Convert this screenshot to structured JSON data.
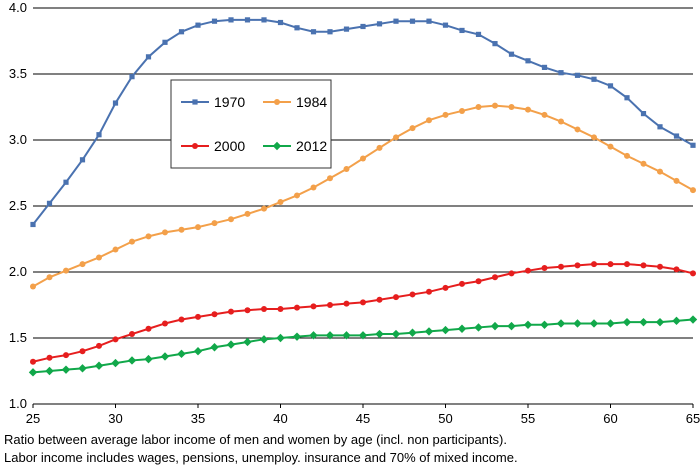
{
  "chart_data": {
    "type": "line",
    "xlim": [
      25,
      65
    ],
    "ylim": [
      1.0,
      4.0
    ],
    "x_ticks": [
      25,
      30,
      35,
      40,
      45,
      50,
      55,
      60,
      65
    ],
    "y_ticks": [
      "1.0",
      "1.5",
      "2.0",
      "2.5",
      "3.0",
      "3.5",
      "4.0"
    ],
    "grid": "horizontal",
    "legend_position": "upper-left-inside",
    "x": [
      25,
      26,
      27,
      28,
      29,
      30,
      31,
      32,
      33,
      34,
      35,
      36,
      37,
      38,
      39,
      40,
      41,
      42,
      43,
      44,
      45,
      46,
      47,
      48,
      49,
      50,
      51,
      52,
      53,
      54,
      55,
      56,
      57,
      58,
      59,
      60,
      61,
      62,
      63,
      64,
      65
    ],
    "series": [
      {
        "name": "1970",
        "color": "#4a72b0",
        "marker": "square",
        "values": [
          2.36,
          2.52,
          2.68,
          2.85,
          3.04,
          3.28,
          3.48,
          3.63,
          3.74,
          3.82,
          3.87,
          3.9,
          3.91,
          3.91,
          3.91,
          3.89,
          3.85,
          3.82,
          3.82,
          3.84,
          3.86,
          3.88,
          3.9,
          3.9,
          3.9,
          3.87,
          3.83,
          3.8,
          3.73,
          3.65,
          3.6,
          3.55,
          3.51,
          3.49,
          3.46,
          3.41,
          3.32,
          3.2,
          3.1,
          3.03,
          2.96
        ]
      },
      {
        "name": "1984",
        "color": "#f3a04a",
        "marker": "circle",
        "values": [
          1.89,
          1.96,
          2.01,
          2.06,
          2.11,
          2.17,
          2.23,
          2.27,
          2.3,
          2.32,
          2.34,
          2.37,
          2.4,
          2.44,
          2.48,
          2.53,
          2.58,
          2.64,
          2.71,
          2.78,
          2.86,
          2.94,
          3.02,
          3.09,
          3.15,
          3.19,
          3.22,
          3.25,
          3.26,
          3.25,
          3.23,
          3.19,
          3.14,
          3.08,
          3.02,
          2.95,
          2.88,
          2.82,
          2.76,
          2.69,
          2.62
        ]
      },
      {
        "name": "2000",
        "color": "#e61e1e",
        "marker": "circle",
        "values": [
          1.32,
          1.35,
          1.37,
          1.4,
          1.44,
          1.49,
          1.53,
          1.57,
          1.61,
          1.64,
          1.66,
          1.68,
          1.7,
          1.71,
          1.72,
          1.72,
          1.73,
          1.74,
          1.75,
          1.76,
          1.77,
          1.79,
          1.81,
          1.83,
          1.85,
          1.88,
          1.91,
          1.93,
          1.96,
          1.99,
          2.01,
          2.03,
          2.04,
          2.05,
          2.06,
          2.06,
          2.06,
          2.05,
          2.04,
          2.02,
          1.99
        ]
      },
      {
        "name": "2012",
        "color": "#11a84a",
        "marker": "diamond",
        "values": [
          1.24,
          1.25,
          1.26,
          1.27,
          1.29,
          1.31,
          1.33,
          1.34,
          1.36,
          1.38,
          1.4,
          1.43,
          1.45,
          1.47,
          1.49,
          1.5,
          1.51,
          1.52,
          1.52,
          1.52,
          1.52,
          1.53,
          1.53,
          1.54,
          1.55,
          1.56,
          1.57,
          1.58,
          1.59,
          1.59,
          1.6,
          1.6,
          1.61,
          1.61,
          1.61,
          1.61,
          1.62,
          1.62,
          1.62,
          1.63,
          1.64
        ]
      }
    ]
  },
  "captions": {
    "line1": "Ratio between average labor income of men and women by age (incl. non participants).",
    "line2": "Labor income includes wages, pensions, unemploy. insurance and 70% of mixed income."
  }
}
